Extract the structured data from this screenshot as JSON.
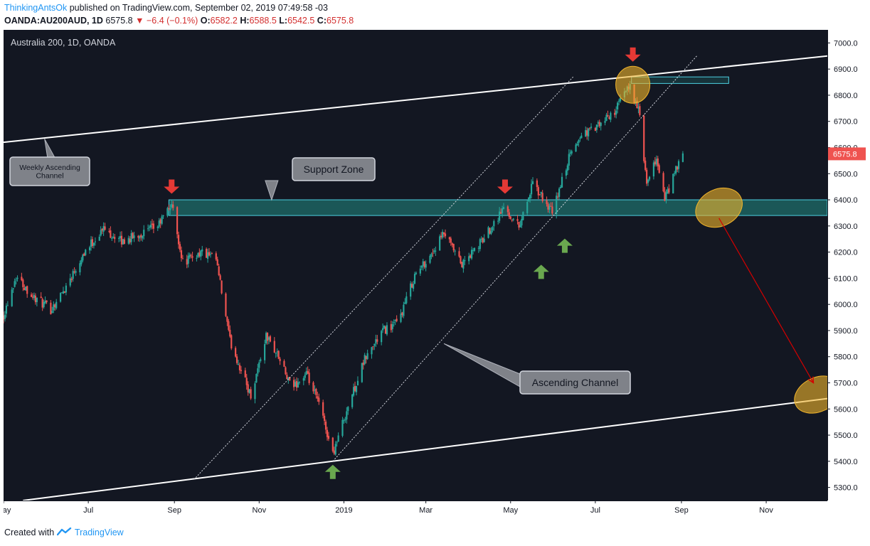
{
  "header": {
    "username": "ThinkingAntsOk",
    "published_text": "published on TradingView.com, September 02, 2019 07:49:58 -03",
    "symbol": "OANDA:AU200AUD, 1D",
    "last": "6575.8",
    "change": "▼ −6.4 (−0.1%)",
    "o_label": "O:",
    "o_value": "6582.2",
    "h_label": "H:",
    "h_value": "6588.5",
    "l_label": "L:",
    "l_value": "6542.5",
    "c_label": "C:",
    "c_value": "6575.8"
  },
  "footer": {
    "created_with": "Created with",
    "brand": "TradingView"
  },
  "chart_data": {
    "type": "candlestick",
    "title": "Australia 200, 1D, OANDA",
    "y_range": [
      5250,
      7050
    ],
    "y_ticks": [
      5300,
      5400,
      5500,
      5600,
      5700,
      5800,
      5900,
      6000,
      6100,
      6200,
      6300,
      6400,
      6500,
      6600,
      6700,
      6800,
      6900,
      7000
    ],
    "x_range": [
      "2018-05-01",
      "2019-12-15"
    ],
    "x_ticks": [
      {
        "label": "May",
        "date": "2018-05-01"
      },
      {
        "label": "Jul",
        "date": "2018-07-01"
      },
      {
        "label": "Sep",
        "date": "2018-09-01"
      },
      {
        "label": "Nov",
        "date": "2018-11-01"
      },
      {
        "label": "2019",
        "date": "2019-01-01"
      },
      {
        "label": "Mar",
        "date": "2019-03-01"
      },
      {
        "label": "May",
        "date": "2019-05-01"
      },
      {
        "label": "Jul",
        "date": "2019-07-01"
      },
      {
        "label": "Sep",
        "date": "2019-09-01"
      },
      {
        "label": "Nov",
        "date": "2019-11-01"
      }
    ],
    "last_price_label": "6575.8",
    "colors": {
      "background": "#131722",
      "up": "#26a69a",
      "down": "#ef5350",
      "zone": "#26a69a",
      "zone_border": "#4dd0e1",
      "ellipse": "#f2b52c",
      "arrow_down": "#e53935",
      "arrow_up": "#6aa84f",
      "trendline": "#ffffff",
      "projection": "#d50000"
    },
    "price_path": [
      {
        "date": "2018-05-01",
        "price": 5960
      },
      {
        "date": "2018-05-10",
        "price": 6110
      },
      {
        "date": "2018-05-22",
        "price": 6030
      },
      {
        "date": "2018-06-04",
        "price": 5980
      },
      {
        "date": "2018-06-14",
        "price": 6060
      },
      {
        "date": "2018-06-28",
        "price": 6200
      },
      {
        "date": "2018-07-12",
        "price": 6290
      },
      {
        "date": "2018-07-25",
        "price": 6240
      },
      {
        "date": "2018-08-08",
        "price": 6270
      },
      {
        "date": "2018-08-20",
        "price": 6300
      },
      {
        "date": "2018-08-30",
        "price": 6385
      },
      {
        "date": "2018-09-07",
        "price": 6160
      },
      {
        "date": "2018-09-20",
        "price": 6200
      },
      {
        "date": "2018-10-01",
        "price": 6170
      },
      {
        "date": "2018-10-11",
        "price": 5860
      },
      {
        "date": "2018-10-26",
        "price": 5650
      },
      {
        "date": "2018-11-06",
        "price": 5880
      },
      {
        "date": "2018-11-14",
        "price": 5810
      },
      {
        "date": "2018-11-24",
        "price": 5680
      },
      {
        "date": "2018-12-05",
        "price": 5730
      },
      {
        "date": "2018-12-14",
        "price": 5620
      },
      {
        "date": "2018-12-24",
        "price": 5430
      },
      {
        "date": "2019-01-04",
        "price": 5610
      },
      {
        "date": "2019-01-16",
        "price": 5790
      },
      {
        "date": "2019-01-29",
        "price": 5900
      },
      {
        "date": "2019-02-09",
        "price": 5930
      },
      {
        "date": "2019-02-21",
        "price": 6110
      },
      {
        "date": "2019-03-06",
        "price": 6200
      },
      {
        "date": "2019-03-14",
        "price": 6270
      },
      {
        "date": "2019-03-27",
        "price": 6150
      },
      {
        "date": "2019-04-10",
        "price": 6240
      },
      {
        "date": "2019-04-26",
        "price": 6370
      },
      {
        "date": "2019-05-07",
        "price": 6300
      },
      {
        "date": "2019-05-17",
        "price": 6460
      },
      {
        "date": "2019-05-31",
        "price": 6350
      },
      {
        "date": "2019-06-12",
        "price": 6560
      },
      {
        "date": "2019-06-21",
        "price": 6650
      },
      {
        "date": "2019-07-03",
        "price": 6680
      },
      {
        "date": "2019-07-15",
        "price": 6740
      },
      {
        "date": "2019-07-26",
        "price": 6840
      },
      {
        "date": "2019-08-02",
        "price": 6720
      },
      {
        "date": "2019-08-07",
        "price": 6450
      },
      {
        "date": "2019-08-14",
        "price": 6560
      },
      {
        "date": "2019-08-20",
        "price": 6400
      },
      {
        "date": "2019-08-27",
        "price": 6500
      },
      {
        "date": "2019-09-02",
        "price": 6576
      }
    ],
    "support_zone": {
      "low": 6340,
      "high": 6400,
      "start": "2018-08-28",
      "end": "2019-12-15"
    },
    "resistance_box": {
      "low": 6845,
      "high": 6870,
      "start": "2019-07-27",
      "end": "2019-10-05"
    },
    "weekly_channel": {
      "upper": [
        {
          "date": "2018-05-01",
          "price": 6620
        },
        {
          "date": "2019-12-15",
          "price": 6950
        }
      ],
      "lower": [
        {
          "date": "2018-05-15",
          "price": 5250
        },
        {
          "date": "2019-12-15",
          "price": 5640
        }
      ]
    },
    "ascending_channel": {
      "upper": [
        {
          "date": "2018-09-15",
          "price": 5330
        },
        {
          "date": "2019-06-15",
          "price": 6870
        }
      ],
      "lower": [
        {
          "date": "2018-12-24",
          "price": 5400
        },
        {
          "date": "2019-09-12",
          "price": 6950
        }
      ]
    },
    "annotations": [
      {
        "text": "Weekly Ascending Channel",
        "lines": [
          "Weekly Ascending",
          "Channel"
        ]
      },
      {
        "text": "Support Zone"
      },
      {
        "text": "Ascending Channel"
      }
    ],
    "arrows_down": [
      {
        "date": "2018-08-30",
        "price": 6445
      },
      {
        "date": "2019-04-27",
        "price": 6445
      },
      {
        "date": "2019-07-28",
        "price": 6950
      }
    ],
    "arrows_up": [
      {
        "date": "2018-12-24",
        "price": 5365
      },
      {
        "date": "2019-05-23",
        "price": 6130
      },
      {
        "date": "2019-06-09",
        "price": 6230
      }
    ],
    "ellipses": [
      {
        "date": "2019-07-28",
        "price": 6840,
        "rx": 24,
        "ry": 26,
        "angle": 0
      },
      {
        "date": "2019-09-28",
        "price": 6370,
        "rx": 34,
        "ry": 26,
        "angle": -25
      },
      {
        "date": "2019-12-08",
        "price": 5655,
        "rx": 34,
        "ry": 24,
        "angle": -25
      }
    ],
    "projection": {
      "from": {
        "date": "2019-09-28",
        "price": 6330
      },
      "to": {
        "date": "2019-12-05",
        "price": 5700
      }
    }
  }
}
